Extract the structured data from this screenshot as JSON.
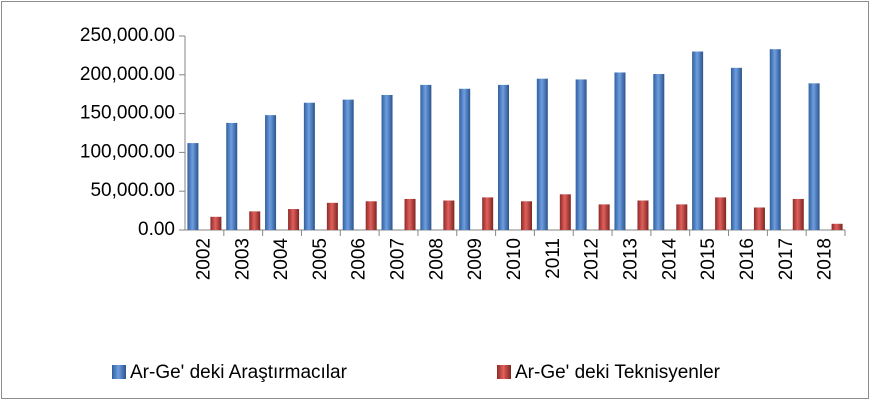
{
  "chart_data": {
    "type": "bar",
    "categories": [
      "2002",
      "2003",
      "2004",
      "2005",
      "2006",
      "2007",
      "2008",
      "2009",
      "2010",
      "2011",
      "2012",
      "2013",
      "2014",
      "2015",
      "2016",
      "2017",
      "2018"
    ],
    "series": [
      {
        "name": "Ar-Ge' deki Araştırmacılar",
        "color": "#4f81bd",
        "values": [
          112000,
          138000,
          148000,
          164000,
          168000,
          174000,
          187000,
          182000,
          187000,
          195000,
          194000,
          203000,
          201000,
          230000,
          209000,
          233000,
          189000
        ]
      },
      {
        "name": "Ar-Ge' deki Teknisyenler",
        "color": "#c0504d",
        "values": [
          17000,
          24000,
          27000,
          35000,
          37000,
          40000,
          38000,
          42000,
          37000,
          46000,
          33000,
          38000,
          33000,
          42000,
          29000,
          40000,
          8000
        ]
      }
    ],
    "ylim": [
      0,
      250000
    ],
    "yticks": [
      {
        "value": 0,
        "label": "0.00"
      },
      {
        "value": 50000,
        "label": "50,000.00"
      },
      {
        "value": 100000,
        "label": "100,000.00"
      },
      {
        "value": 150000,
        "label": "150,000.00"
      },
      {
        "value": 200000,
        "label": "200,000.00"
      },
      {
        "value": 250000,
        "label": "250,000.00"
      }
    ],
    "grid": false,
    "legend": "bottom"
  }
}
